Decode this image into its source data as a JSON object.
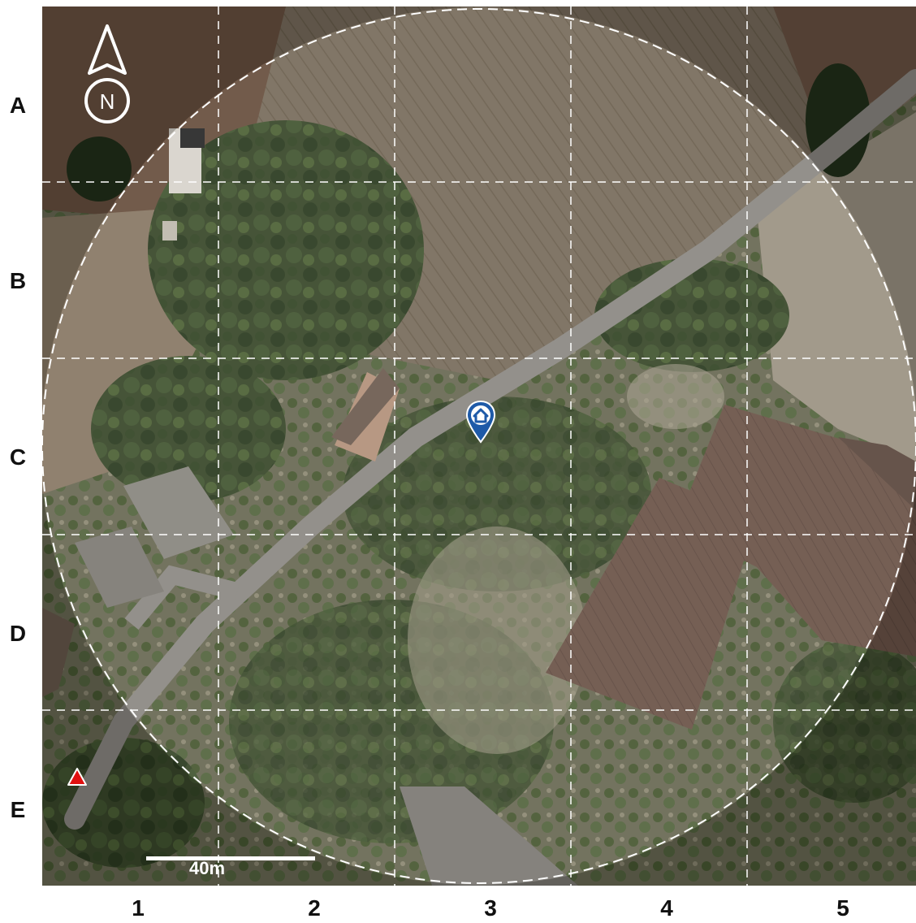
{
  "map": {
    "rows": [
      "A",
      "B",
      "C",
      "D",
      "E"
    ],
    "columns": [
      "1",
      "2",
      "3",
      "4",
      "5"
    ],
    "scale_label": "40m",
    "north_label": "N",
    "icons": {
      "north_arrow": "north-arrow-icon",
      "location_marker": "home-pin-icon",
      "reference_point": "red-triangle-icon"
    },
    "colors": {
      "grid_line": "#ffffff",
      "marker": "#1e5aa8",
      "triangle": "#e01010",
      "radius_ring": "#ffffff"
    }
  }
}
